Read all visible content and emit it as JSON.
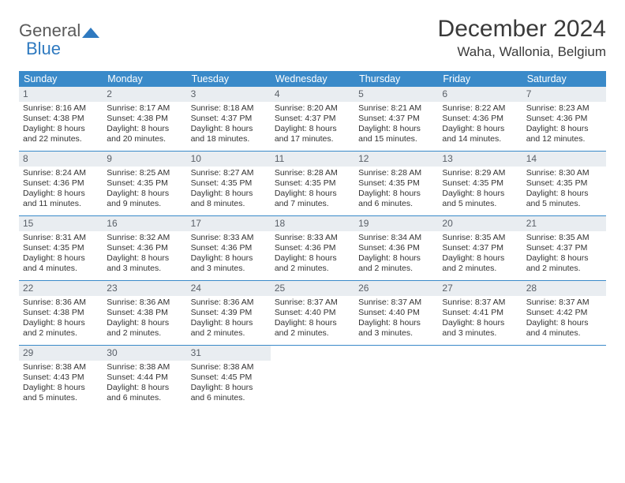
{
  "logo": {
    "text_general": "General",
    "text_blue": "Blue",
    "color_general": "#5a5a5a",
    "color_blue": "#2f7ac0",
    "shape_color": "#2f7ac0"
  },
  "header": {
    "month_title": "December 2024",
    "location": "Waha, Wallonia, Belgium"
  },
  "styling": {
    "header_bg": "#3a8ac9",
    "header_text": "#ffffff",
    "daynum_bg": "#e9edf1",
    "daynum_color": "#5a6068",
    "week_border": "#3a8ac9",
    "body_text": "#333333",
    "page_bg": "#ffffff",
    "font_family": "Arial, Helvetica, sans-serif",
    "title_fontsize": 30,
    "location_fontsize": 17,
    "dayhead_fontsize": 12.5,
    "cell_fontsize": 10.5
  },
  "day_headers": [
    "Sunday",
    "Monday",
    "Tuesday",
    "Wednesday",
    "Thursday",
    "Friday",
    "Saturday"
  ],
  "weeks": [
    [
      {
        "day": "1",
        "sunrise": "Sunrise: 8:16 AM",
        "sunset": "Sunset: 4:38 PM",
        "dl1": "Daylight: 8 hours",
        "dl2": "and 22 minutes."
      },
      {
        "day": "2",
        "sunrise": "Sunrise: 8:17 AM",
        "sunset": "Sunset: 4:38 PM",
        "dl1": "Daylight: 8 hours",
        "dl2": "and 20 minutes."
      },
      {
        "day": "3",
        "sunrise": "Sunrise: 8:18 AM",
        "sunset": "Sunset: 4:37 PM",
        "dl1": "Daylight: 8 hours",
        "dl2": "and 18 minutes."
      },
      {
        "day": "4",
        "sunrise": "Sunrise: 8:20 AM",
        "sunset": "Sunset: 4:37 PM",
        "dl1": "Daylight: 8 hours",
        "dl2": "and 17 minutes."
      },
      {
        "day": "5",
        "sunrise": "Sunrise: 8:21 AM",
        "sunset": "Sunset: 4:37 PM",
        "dl1": "Daylight: 8 hours",
        "dl2": "and 15 minutes."
      },
      {
        "day": "6",
        "sunrise": "Sunrise: 8:22 AM",
        "sunset": "Sunset: 4:36 PM",
        "dl1": "Daylight: 8 hours",
        "dl2": "and 14 minutes."
      },
      {
        "day": "7",
        "sunrise": "Sunrise: 8:23 AM",
        "sunset": "Sunset: 4:36 PM",
        "dl1": "Daylight: 8 hours",
        "dl2": "and 12 minutes."
      }
    ],
    [
      {
        "day": "8",
        "sunrise": "Sunrise: 8:24 AM",
        "sunset": "Sunset: 4:36 PM",
        "dl1": "Daylight: 8 hours",
        "dl2": "and 11 minutes."
      },
      {
        "day": "9",
        "sunrise": "Sunrise: 8:25 AM",
        "sunset": "Sunset: 4:35 PM",
        "dl1": "Daylight: 8 hours",
        "dl2": "and 9 minutes."
      },
      {
        "day": "10",
        "sunrise": "Sunrise: 8:27 AM",
        "sunset": "Sunset: 4:35 PM",
        "dl1": "Daylight: 8 hours",
        "dl2": "and 8 minutes."
      },
      {
        "day": "11",
        "sunrise": "Sunrise: 8:28 AM",
        "sunset": "Sunset: 4:35 PM",
        "dl1": "Daylight: 8 hours",
        "dl2": "and 7 minutes."
      },
      {
        "day": "12",
        "sunrise": "Sunrise: 8:28 AM",
        "sunset": "Sunset: 4:35 PM",
        "dl1": "Daylight: 8 hours",
        "dl2": "and 6 minutes."
      },
      {
        "day": "13",
        "sunrise": "Sunrise: 8:29 AM",
        "sunset": "Sunset: 4:35 PM",
        "dl1": "Daylight: 8 hours",
        "dl2": "and 5 minutes."
      },
      {
        "day": "14",
        "sunrise": "Sunrise: 8:30 AM",
        "sunset": "Sunset: 4:35 PM",
        "dl1": "Daylight: 8 hours",
        "dl2": "and 5 minutes."
      }
    ],
    [
      {
        "day": "15",
        "sunrise": "Sunrise: 8:31 AM",
        "sunset": "Sunset: 4:35 PM",
        "dl1": "Daylight: 8 hours",
        "dl2": "and 4 minutes."
      },
      {
        "day": "16",
        "sunrise": "Sunrise: 8:32 AM",
        "sunset": "Sunset: 4:36 PM",
        "dl1": "Daylight: 8 hours",
        "dl2": "and 3 minutes."
      },
      {
        "day": "17",
        "sunrise": "Sunrise: 8:33 AM",
        "sunset": "Sunset: 4:36 PM",
        "dl1": "Daylight: 8 hours",
        "dl2": "and 3 minutes."
      },
      {
        "day": "18",
        "sunrise": "Sunrise: 8:33 AM",
        "sunset": "Sunset: 4:36 PM",
        "dl1": "Daylight: 8 hours",
        "dl2": "and 2 minutes."
      },
      {
        "day": "19",
        "sunrise": "Sunrise: 8:34 AM",
        "sunset": "Sunset: 4:36 PM",
        "dl1": "Daylight: 8 hours",
        "dl2": "and 2 minutes."
      },
      {
        "day": "20",
        "sunrise": "Sunrise: 8:35 AM",
        "sunset": "Sunset: 4:37 PM",
        "dl1": "Daylight: 8 hours",
        "dl2": "and 2 minutes."
      },
      {
        "day": "21",
        "sunrise": "Sunrise: 8:35 AM",
        "sunset": "Sunset: 4:37 PM",
        "dl1": "Daylight: 8 hours",
        "dl2": "and 2 minutes."
      }
    ],
    [
      {
        "day": "22",
        "sunrise": "Sunrise: 8:36 AM",
        "sunset": "Sunset: 4:38 PM",
        "dl1": "Daylight: 8 hours",
        "dl2": "and 2 minutes."
      },
      {
        "day": "23",
        "sunrise": "Sunrise: 8:36 AM",
        "sunset": "Sunset: 4:38 PM",
        "dl1": "Daylight: 8 hours",
        "dl2": "and 2 minutes."
      },
      {
        "day": "24",
        "sunrise": "Sunrise: 8:36 AM",
        "sunset": "Sunset: 4:39 PM",
        "dl1": "Daylight: 8 hours",
        "dl2": "and 2 minutes."
      },
      {
        "day": "25",
        "sunrise": "Sunrise: 8:37 AM",
        "sunset": "Sunset: 4:40 PM",
        "dl1": "Daylight: 8 hours",
        "dl2": "and 2 minutes."
      },
      {
        "day": "26",
        "sunrise": "Sunrise: 8:37 AM",
        "sunset": "Sunset: 4:40 PM",
        "dl1": "Daylight: 8 hours",
        "dl2": "and 3 minutes."
      },
      {
        "day": "27",
        "sunrise": "Sunrise: 8:37 AM",
        "sunset": "Sunset: 4:41 PM",
        "dl1": "Daylight: 8 hours",
        "dl2": "and 3 minutes."
      },
      {
        "day": "28",
        "sunrise": "Sunrise: 8:37 AM",
        "sunset": "Sunset: 4:42 PM",
        "dl1": "Daylight: 8 hours",
        "dl2": "and 4 minutes."
      }
    ],
    [
      {
        "day": "29",
        "sunrise": "Sunrise: 8:38 AM",
        "sunset": "Sunset: 4:43 PM",
        "dl1": "Daylight: 8 hours",
        "dl2": "and 5 minutes."
      },
      {
        "day": "30",
        "sunrise": "Sunrise: 8:38 AM",
        "sunset": "Sunset: 4:44 PM",
        "dl1": "Daylight: 8 hours",
        "dl2": "and 6 minutes."
      },
      {
        "day": "31",
        "sunrise": "Sunrise: 8:38 AM",
        "sunset": "Sunset: 4:45 PM",
        "dl1": "Daylight: 8 hours",
        "dl2": "and 6 minutes."
      },
      null,
      null,
      null,
      null
    ]
  ]
}
